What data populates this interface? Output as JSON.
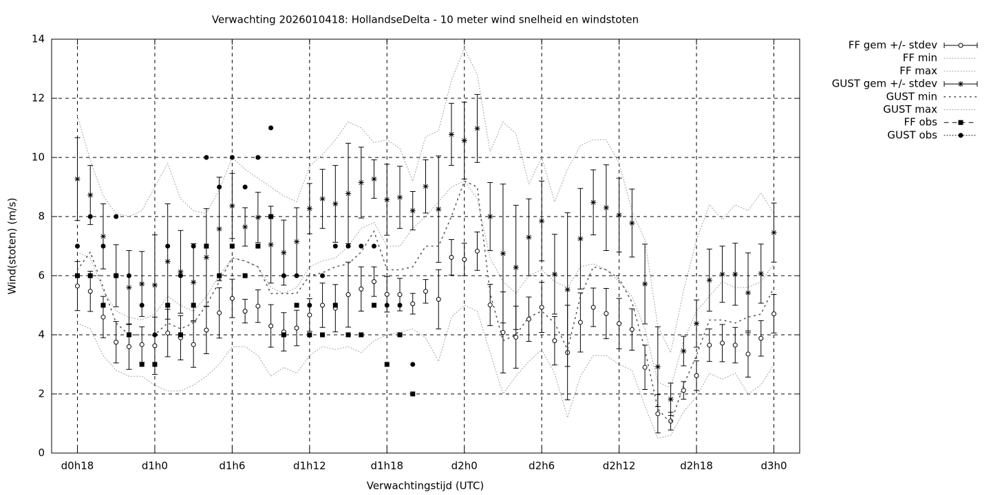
{
  "chart_data": {
    "type": "errorbar",
    "title": "Verwachting 2026010418: HollandseDelta - 10 meter wind snelheid en windstoten",
    "xlabel": "Verwachtingstijd (UTC)",
    "ylabel": "Wind(stoten) (m/s)",
    "xlim": [
      16,
      74
    ],
    "ylim": [
      0,
      14
    ],
    "xticks": [
      {
        "value": 18,
        "label": "d0h18"
      },
      {
        "value": 24,
        "label": "d1h0"
      },
      {
        "value": 30,
        "label": "d1h6"
      },
      {
        "value": 36,
        "label": "d1h12"
      },
      {
        "value": 42,
        "label": "d1h18"
      },
      {
        "value": 48,
        "label": "d2h0"
      },
      {
        "value": 54,
        "label": "d2h6"
      },
      {
        "value": 60,
        "label": "d2h12"
      },
      {
        "value": 66,
        "label": "d2h18"
      },
      {
        "value": 72,
        "label": "d3h0"
      }
    ],
    "yticks": [
      0,
      2,
      4,
      6,
      8,
      10,
      12,
      14
    ],
    "grid": true,
    "legend": "outside-right",
    "x": [
      18,
      19,
      20,
      21,
      22,
      23,
      24,
      25,
      26,
      27,
      28,
      29,
      30,
      31,
      32,
      33,
      34,
      35,
      36,
      37,
      38,
      39,
      40,
      41,
      42,
      43,
      44,
      45,
      46,
      47,
      48,
      49,
      50,
      51,
      52,
      53,
      54,
      55,
      56,
      57,
      58,
      59,
      60,
      61,
      62,
      63,
      64,
      65,
      66,
      67,
      68,
      69,
      70,
      71,
      72
    ],
    "series": [
      {
        "name": "FF gem +/- stdev",
        "color": "#000000",
        "marker": "circle",
        "line": "solid",
        "values": [
          5.65,
          5.47,
          4.6,
          3.75,
          3.6,
          3.67,
          3.63,
          4.06,
          3.9,
          3.67,
          4.16,
          4.74,
          5.23,
          4.8,
          4.97,
          4.3,
          4.1,
          4.23,
          4.67,
          5.0,
          4.9,
          5.36,
          5.55,
          5.8,
          5.37,
          5.36,
          5.05,
          5.47,
          5.2,
          6.62,
          6.55,
          6.83,
          5.01,
          4.08,
          3.92,
          4.53,
          4.93,
          3.8,
          3.4,
          4.42,
          4.93,
          4.72,
          4.38,
          4.18,
          2.9,
          1.33,
          1.08,
          2.12,
          2.62,
          3.65,
          3.72,
          3.65,
          3.35,
          3.88,
          4.71
        ],
        "errors": [
          0.83,
          0.68,
          0.7,
          0.7,
          0.77,
          0.6,
          0.97,
          0.8,
          0.75,
          0.77,
          0.8,
          0.85,
          0.65,
          0.4,
          0.55,
          0.72,
          0.65,
          0.6,
          0.55,
          0.75,
          0.8,
          1.1,
          0.75,
          0.5,
          0.6,
          0.55,
          0.35,
          0.4,
          1.0,
          0.6,
          0.55,
          0.65,
          0.7,
          1.37,
          1.05,
          0.75,
          0.85,
          0.82,
          1.6,
          1.0,
          0.65,
          0.85,
          0.85,
          0.7,
          0.75,
          0.65,
          0.3,
          0.3,
          0.5,
          0.55,
          0.63,
          0.6,
          0.78,
          0.6,
          0.65
        ]
      },
      {
        "name": "FF min",
        "color": "#999999",
        "marker": "none",
        "line": "dotted",
        "values": [
          4.4,
          4.2,
          3.3,
          2.8,
          2.6,
          2.6,
          2.3,
          2.1,
          2.1,
          2.3,
          2.6,
          3.0,
          3.6,
          3.6,
          3.3,
          2.6,
          2.9,
          2.7,
          3.3,
          3.6,
          3.5,
          3.6,
          3.4,
          3.8,
          4.0,
          4.1,
          4.2,
          3.9,
          3.1,
          4.6,
          5.0,
          4.8,
          3.4,
          2.0,
          2.6,
          3.1,
          3.5,
          2.7,
          1.2,
          2.6,
          3.3,
          3.3,
          3.0,
          2.8,
          1.6,
          0.5,
          0.6,
          1.4,
          1.9,
          2.7,
          2.5,
          2.7,
          2.0,
          2.3,
          3.0
        ]
      },
      {
        "name": "FF max",
        "color": "#999999",
        "marker": "none",
        "line": "dotted",
        "values": [
          6.8,
          6.6,
          5.5,
          4.8,
          4.6,
          4.5,
          4.7,
          5.3,
          5.0,
          4.8,
          5.3,
          6.0,
          6.6,
          6.5,
          6.3,
          5.6,
          5.4,
          5.6,
          6.3,
          6.5,
          6.6,
          7.0,
          7.6,
          7.8,
          7.0,
          7.0,
          7.6,
          8.0,
          8.5,
          9.0,
          9.2,
          8.6,
          6.6,
          5.8,
          5.4,
          6.0,
          6.2,
          5.8,
          5.6,
          6.3,
          6.4,
          6.2,
          5.8,
          5.3,
          4.2,
          2.4,
          2.2,
          3.8,
          4.8,
          5.3,
          5.8,
          5.6,
          5.6,
          5.8,
          6.4
        ]
      },
      {
        "name": "GUST gem +/- stdev",
        "color": "#000000",
        "marker": "star",
        "line": "solid",
        "values": [
          9.27,
          8.73,
          7.33,
          6.0,
          5.6,
          5.72,
          5.68,
          6.48,
          6.13,
          5.78,
          6.62,
          7.58,
          8.36,
          7.65,
          7.97,
          7.05,
          6.78,
          7.15,
          8.27,
          8.6,
          8.43,
          8.78,
          9.15,
          9.27,
          8.57,
          8.65,
          8.2,
          9.02,
          8.25,
          10.78,
          10.57,
          10.98,
          8.0,
          6.75,
          6.28,
          7.3,
          7.85,
          6.05,
          5.53,
          7.25,
          8.48,
          8.3,
          8.05,
          7.78,
          5.72,
          2.92,
          1.82,
          3.45,
          4.38,
          5.85,
          6.05,
          6.05,
          5.42,
          6.07,
          7.46
        ],
        "errors": [
          1.4,
          1.0,
          1.1,
          1.05,
          1.25,
          1.1,
          1.7,
          1.95,
          1.4,
          1.3,
          1.65,
          1.75,
          1.1,
          0.65,
          0.85,
          1.3,
          1.1,
          1.15,
          0.85,
          1.0,
          1.3,
          1.7,
          1.2,
          0.65,
          1.2,
          1.05,
          0.65,
          0.9,
          1.8,
          1.05,
          1.3,
          1.15,
          1.15,
          2.35,
          2.1,
          1.3,
          1.35,
          1.35,
          2.6,
          1.7,
          1.1,
          1.45,
          1.25,
          1.15,
          1.35,
          1.35,
          0.55,
          0.5,
          0.8,
          1.05,
          0.95,
          1.05,
          1.35,
          1.0,
          1.0
        ]
      },
      {
        "name": "GUST min",
        "color": "#555555",
        "marker": "none",
        "line": "dotted-wide",
        "values": [
          6.2,
          6.8,
          5.6,
          4.4,
          4.0,
          4.0,
          4.0,
          4.4,
          4.2,
          4.4,
          5.0,
          5.8,
          6.6,
          6.5,
          6.3,
          5.4,
          5.4,
          5.4,
          6.0,
          6.1,
          6.3,
          6.4,
          6.8,
          7.5,
          6.2,
          6.2,
          6.3,
          7.0,
          7.0,
          8.0,
          9.2,
          9.0,
          5.4,
          3.8,
          4.0,
          4.6,
          4.8,
          4.4,
          3.5,
          5.3,
          6.3,
          6.2,
          5.9,
          5.1,
          3.5,
          1.5,
          1.0,
          2.3,
          3.3,
          4.5,
          4.5,
          4.4,
          4.6,
          4.7,
          5.6
        ]
      },
      {
        "name": "GUST max",
        "color": "#999999",
        "marker": "none",
        "line": "dotted",
        "values": [
          11.4,
          9.9,
          8.7,
          8.1,
          8.0,
          8.2,
          9.0,
          9.8,
          8.6,
          8.2,
          8.1,
          8.9,
          10.0,
          9.6,
          9.3,
          9.0,
          8.7,
          8.5,
          9.7,
          10.1,
          10.6,
          11.2,
          11.0,
          10.5,
          10.6,
          10.3,
          9.2,
          10.7,
          10.9,
          12.6,
          13.7,
          12.8,
          10.2,
          11.2,
          10.8,
          9.1,
          10.0,
          8.5,
          9.6,
          10.4,
          10.6,
          10.6,
          9.8,
          8.2,
          7.2,
          4.3,
          3.4,
          5.5,
          7.2,
          8.4,
          7.9,
          8.4,
          8.2,
          8.8,
          8.1
        ]
      },
      {
        "name": "FF obs",
        "color": "#000000",
        "marker": "square",
        "line": "dashed",
        "values": [
          6,
          6,
          5,
          6,
          4,
          3,
          3,
          5,
          4,
          5,
          7,
          6,
          7,
          6,
          7,
          8,
          4,
          5,
          4,
          4,
          5,
          4,
          4,
          5,
          3,
          4,
          2,
          null,
          null,
          null,
          null,
          null,
          null,
          null,
          null,
          null,
          null,
          null,
          null,
          null,
          null,
          null,
          null,
          null,
          null,
          null,
          null,
          null,
          null,
          null,
          null,
          null,
          null,
          null,
          null
        ]
      },
      {
        "name": "GUST obs",
        "color": "#000000",
        "marker": "dot",
        "line": "dotted",
        "values": [
          7,
          8,
          7,
          8,
          6,
          5,
          4,
          7,
          6,
          7,
          10,
          9,
          10,
          9,
          10,
          11,
          6,
          6,
          5,
          6,
          7,
          7,
          7,
          7,
          5,
          5,
          3,
          null,
          null,
          null,
          null,
          null,
          null,
          null,
          null,
          null,
          null,
          null,
          null,
          null,
          null,
          null,
          null,
          null,
          null,
          null,
          null,
          null,
          null,
          null,
          null,
          null,
          null,
          null,
          null
        ]
      }
    ]
  }
}
